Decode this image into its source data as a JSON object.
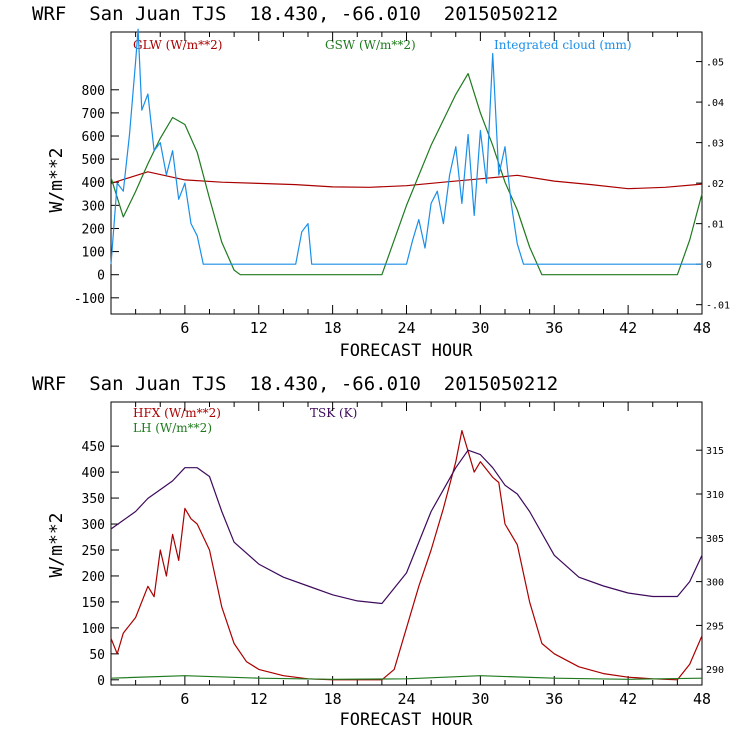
{
  "colors": {
    "glw": "#aa0000",
    "gsw": "#1f7a1f",
    "cloud": "#1a8fe8",
    "hfx": "#aa0000",
    "lh": "#1f7a1f",
    "tsk": "#3d0a5c",
    "axis": "#000000"
  },
  "chart_data": [
    {
      "type": "line",
      "title": "WRF  San Juan TJS  18.430, -66.010  2015050212",
      "xlabel": "FORECAST HOUR",
      "ylabel": "W/m**2",
      "xlim": [
        0,
        48
      ],
      "ylim": [
        -170,
        1050
      ],
      "xticks": [
        "6",
        "12",
        "18",
        "24",
        "30",
        "36",
        "42",
        "48"
      ],
      "yticks": [
        "-100",
        "0",
        "100",
        "200",
        "300",
        "400",
        "500",
        "600",
        "700",
        "800"
      ],
      "y2lim": [
        -0.0123,
        0.0573
      ],
      "y2ticks": [
        "-.01",
        "0",
        ".01",
        ".02",
        ".03",
        ".04",
        ".05"
      ],
      "grid": false,
      "legend": "top",
      "series": [
        {
          "name": "GLW (W/m**2)",
          "axis": "left",
          "x": [
            0,
            3,
            6,
            9,
            12,
            15,
            18,
            21,
            24,
            27,
            30,
            33,
            36,
            39,
            42,
            45,
            48
          ],
          "values": [
            395,
            445,
            410,
            400,
            395,
            390,
            380,
            378,
            385,
            400,
            415,
            430,
            405,
            390,
            372,
            378,
            392
          ]
        },
        {
          "name": "GSW (W/m**2)",
          "axis": "left",
          "x": [
            0,
            1,
            2,
            3,
            4,
            5,
            6,
            7,
            8,
            9,
            10,
            10.5,
            22,
            24,
            26,
            28,
            29,
            30,
            31,
            32,
            33,
            34,
            35,
            46,
            47,
            48
          ],
          "values": [
            420,
            250,
            360,
            480,
            590,
            680,
            650,
            530,
            330,
            140,
            20,
            0,
            0,
            300,
            560,
            780,
            870,
            700,
            560,
            400,
            280,
            120,
            0,
            0,
            150,
            350
          ]
        },
        {
          "name": "Integrated cloud (mm)",
          "axis": "right",
          "x": [
            0,
            0.5,
            1,
            1.5,
            2,
            2.2,
            2.5,
            3,
            3.5,
            4,
            4.5,
            5,
            5.5,
            6,
            6.5,
            7,
            7.5,
            8,
            15,
            15.5,
            16,
            16.3,
            16.5,
            24,
            24.5,
            25,
            25.5,
            26,
            26.5,
            27,
            27.5,
            28,
            28.5,
            29,
            29.5,
            30,
            30.5,
            31,
            31.5,
            32,
            32.5,
            33,
            33.5,
            48
          ],
          "values": [
            0,
            0.02,
            0.018,
            0.032,
            0.05,
            0.058,
            0.038,
            0.042,
            0.028,
            0.03,
            0.022,
            0.028,
            0.016,
            0.02,
            0.01,
            0.007,
            0.0,
            0.0,
            0.0,
            0.008,
            0.01,
            0.0,
            0.0,
            0.0,
            0.006,
            0.011,
            0.004,
            0.015,
            0.018,
            0.01,
            0.022,
            0.029,
            0.015,
            0.032,
            0.012,
            0.033,
            0.02,
            0.052,
            0.022,
            0.029,
            0.015,
            0.005,
            0.0,
            0.0
          ]
        }
      ]
    },
    {
      "type": "line",
      "title": "WRF  San Juan TJS  18.430, -66.010  2015050212",
      "xlabel": "FORECAST HOUR",
      "ylabel": "W/m**2",
      "xlim": [
        0,
        48
      ],
      "ylim": [
        -10,
        535
      ],
      "xticks": [
        "6",
        "12",
        "18",
        "24",
        "30",
        "36",
        "42",
        "48"
      ],
      "yticks": [
        "0",
        "50",
        "100",
        "150",
        "200",
        "250",
        "300",
        "350",
        "400",
        "450"
      ],
      "y2lim": [
        288.2,
        320.5
      ],
      "y2ticks": [
        "290",
        "295",
        "300",
        "305",
        "310",
        "315"
      ],
      "grid": false,
      "legend": "top-left",
      "series": [
        {
          "name": "HFX (W/m**2)",
          "axis": "left",
          "x": [
            0,
            0.5,
            1,
            2,
            3,
            3.5,
            4,
            4.5,
            5,
            5.5,
            6,
            6.5,
            7,
            8,
            9,
            10,
            11,
            12,
            14,
            16,
            18,
            20,
            22,
            23,
            24,
            25,
            26,
            27,
            28,
            28.5,
            29,
            29.5,
            30,
            31,
            31.5,
            32,
            33,
            34,
            35,
            36,
            38,
            40,
            42,
            44,
            46,
            47,
            48
          ],
          "values": [
            80,
            50,
            90,
            120,
            180,
            160,
            250,
            200,
            280,
            230,
            330,
            310,
            300,
            250,
            140,
            70,
            35,
            20,
            8,
            2,
            0,
            0,
            0,
            20,
            100,
            180,
            250,
            330,
            420,
            480,
            440,
            400,
            420,
            390,
            380,
            300,
            260,
            150,
            70,
            50,
            25,
            12,
            5,
            2,
            0,
            30,
            85
          ]
        },
        {
          "name": "LH  (W/m**2)",
          "axis": "left",
          "x": [
            0,
            6,
            12,
            18,
            24,
            30,
            36,
            42,
            48
          ],
          "values": [
            3,
            8,
            3,
            1,
            2,
            8,
            3,
            1,
            3
          ]
        },
        {
          "name": "TSK (K)",
          "axis": "right",
          "x": [
            0,
            1,
            2,
            3,
            4,
            5,
            6,
            7,
            8,
            9,
            10,
            12,
            14,
            16,
            18,
            20,
            22,
            24,
            26,
            28,
            29,
            30,
            31,
            32,
            33,
            34,
            36,
            38,
            40,
            42,
            44,
            46,
            47,
            48
          ],
          "values": [
            306.0,
            307.0,
            308.0,
            309.5,
            310.5,
            311.5,
            313.0,
            313.0,
            312.0,
            308.0,
            304.5,
            302.0,
            300.5,
            299.5,
            298.5,
            297.8,
            297.5,
            301.0,
            308.0,
            313.0,
            315.0,
            314.5,
            313.0,
            311.0,
            310.0,
            308.0,
            303.0,
            300.5,
            299.5,
            298.7,
            298.3,
            298.3,
            300.0,
            303.0
          ]
        }
      ]
    }
  ]
}
